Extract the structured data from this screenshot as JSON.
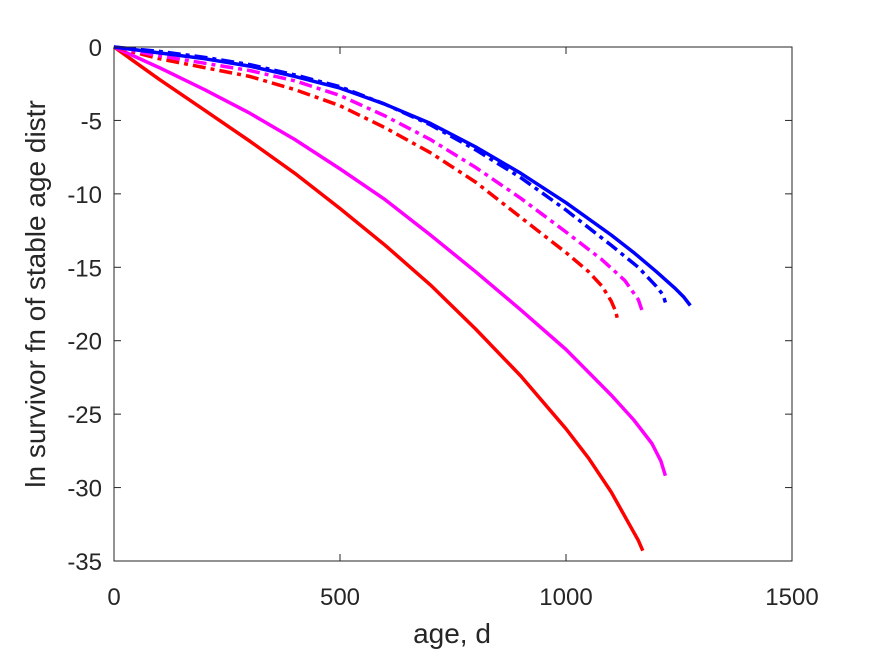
{
  "chart_data": {
    "type": "line",
    "title": "",
    "xlabel": "age, d",
    "ylabel": "ln survivor fn of stable age distr",
    "xlim": [
      0,
      1500
    ],
    "ylim": [
      -35,
      0
    ],
    "xticks": [
      0,
      500,
      1000,
      1500
    ],
    "yticks": [
      0,
      -5,
      -10,
      -15,
      -20,
      -25,
      -30,
      -35
    ],
    "grid": false,
    "legend": "none",
    "series": [
      {
        "color": "#ff0000",
        "style": "solid",
        "x": [
          0,
          100,
          200,
          300,
          400,
          500,
          600,
          700,
          800,
          900,
          1000,
          1050,
          1100,
          1140,
          1160,
          1170
        ],
        "y": [
          0,
          -2.2,
          -4.3,
          -6.4,
          -8.6,
          -11.0,
          -13.5,
          -16.2,
          -19.2,
          -22.4,
          -26.0,
          -28.0,
          -30.3,
          -32.5,
          -33.6,
          -34.3
        ]
      },
      {
        "color": "#ff00ff",
        "style": "solid",
        "x": [
          0,
          100,
          200,
          300,
          400,
          500,
          600,
          700,
          800,
          900,
          1000,
          1100,
          1150,
          1190,
          1210,
          1220
        ],
        "y": [
          0,
          -1.4,
          -2.9,
          -4.5,
          -6.3,
          -8.3,
          -10.4,
          -12.8,
          -15.3,
          -17.9,
          -20.6,
          -23.7,
          -25.4,
          -27.0,
          -28.2,
          -29.2
        ]
      },
      {
        "color": "#ff0000",
        "style": "dashdot",
        "x": [
          0,
          100,
          200,
          300,
          400,
          500,
          600,
          700,
          800,
          900,
          1000,
          1050,
          1080,
          1100,
          1110,
          1115
        ],
        "y": [
          0,
          -0.8,
          -1.4,
          -2.0,
          -2.9,
          -4.0,
          -5.5,
          -7.2,
          -9.2,
          -11.6,
          -14.0,
          -15.3,
          -16.3,
          -17.3,
          -18.0,
          -18.7
        ]
      },
      {
        "color": "#ff00ff",
        "style": "dashdot",
        "x": [
          0,
          100,
          200,
          300,
          400,
          500,
          600,
          700,
          800,
          900,
          1000,
          1080,
          1130,
          1160,
          1170
        ],
        "y": [
          0,
          -0.6,
          -1.1,
          -1.6,
          -2.3,
          -3.3,
          -4.7,
          -6.3,
          -8.2,
          -10.3,
          -12.6,
          -14.5,
          -15.9,
          -17.2,
          -18.1
        ]
      },
      {
        "color": "#0000ff",
        "style": "dashdot",
        "x": [
          0,
          100,
          200,
          300,
          400,
          500,
          600,
          700,
          800,
          900,
          1000,
          1100,
          1160,
          1200,
          1215,
          1220
        ],
        "y": [
          0,
          -0.3,
          -0.7,
          -1.2,
          -1.9,
          -2.7,
          -3.9,
          -5.3,
          -7.0,
          -8.9,
          -11.1,
          -13.5,
          -15.0,
          -16.3,
          -16.9,
          -17.4
        ]
      },
      {
        "color": "#0000ff",
        "style": "solid",
        "x": [
          0,
          100,
          200,
          300,
          400,
          500,
          600,
          700,
          800,
          900,
          1000,
          1100,
          1150,
          1200,
          1240,
          1260,
          1275
        ],
        "y": [
          0,
          -0.4,
          -0.8,
          -1.3,
          -2.0,
          -2.8,
          -3.9,
          -5.2,
          -6.8,
          -8.6,
          -10.6,
          -12.8,
          -14.0,
          -15.3,
          -16.4,
          -17.0,
          -17.6
        ]
      }
    ]
  }
}
